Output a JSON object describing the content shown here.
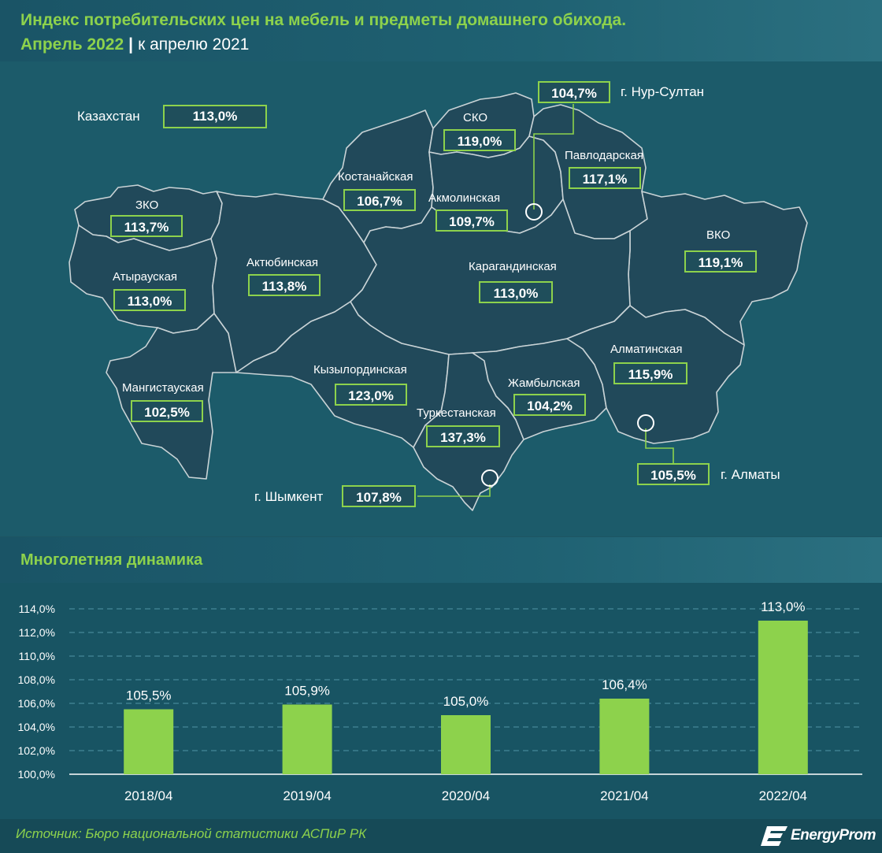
{
  "header": {
    "title": "Индекс потребительских цен на мебель и предметы домашнего обихода.",
    "period": "Апрель 2022",
    "separator": "|",
    "comparison": "к апрелю 2021"
  },
  "map": {
    "kazakhstan": {
      "label": "Казахстан",
      "value": "113,0%"
    },
    "regions": {
      "zko": {
        "label": "ЗКО",
        "value": "113,7%"
      },
      "atyrau": {
        "label": "Атырауская",
        "value": "113,0%"
      },
      "mangistau": {
        "label": "Мангистауская",
        "value": "102,5%"
      },
      "aktobe": {
        "label": "Актюбинская",
        "value": "113,8%"
      },
      "kostanay": {
        "label": "Костанайская",
        "value": "106,7%"
      },
      "sko": {
        "label": "СКО",
        "value": "119,0%"
      },
      "akmola": {
        "label": "Акмолинская",
        "value": "109,7%"
      },
      "pavlodar": {
        "label": "Павлодарская",
        "value": "117,1%"
      },
      "vko": {
        "label": "ВКО",
        "value": "119,1%"
      },
      "karaganda": {
        "label": "Карагандинская",
        "value": "113,0%"
      },
      "kyzylorda": {
        "label": "Кызылординская",
        "value": "123,0%"
      },
      "turkestan": {
        "label": "Туркестанская",
        "value": "137,3%"
      },
      "zhambyl": {
        "label": "Жамбылская",
        "value": "104,2%"
      },
      "almaty_obl": {
        "label": "Алматинская",
        "value": "115,9%"
      }
    },
    "cities": {
      "nursultan": {
        "label": "г. Нур-Султан",
        "value": "104,7%"
      },
      "almaty": {
        "label": "г. Алматы",
        "value": "105,5%"
      },
      "shymkent": {
        "label": "г. Шымкент",
        "value": "107,8%"
      }
    }
  },
  "dynamics": {
    "title": "Многолетняя динамика"
  },
  "chart_data": {
    "type": "bar",
    "title": "Многолетняя динамика",
    "categories": [
      "2018/04",
      "2019/04",
      "2020/04",
      "2021/04",
      "2022/04"
    ],
    "values": [
      105.5,
      105.9,
      105.0,
      106.4,
      113.0
    ],
    "value_labels": [
      "105,5%",
      "105,9%",
      "105,0%",
      "106,4%",
      "113,0%"
    ],
    "ylim": [
      100,
      114
    ],
    "yticks": [
      100,
      102,
      104,
      106,
      108,
      110,
      112,
      114
    ],
    "ytick_labels": [
      "100,0%",
      "102,0%",
      "104,0%",
      "106,0%",
      "108,0%",
      "110,0%",
      "112,0%",
      "114,0%"
    ],
    "grid": true,
    "xlabel": "",
    "ylabel": "",
    "bar_color": "#8dd24c"
  },
  "footer": {
    "source": "Источник: Бюро национальной статистики АСПиР РК",
    "logo": "EnergyProm"
  },
  "colors": {
    "accent": "#8dd24c",
    "background": "#1d5563",
    "region_fill": "#21495a",
    "border": "#c9d3d6"
  }
}
